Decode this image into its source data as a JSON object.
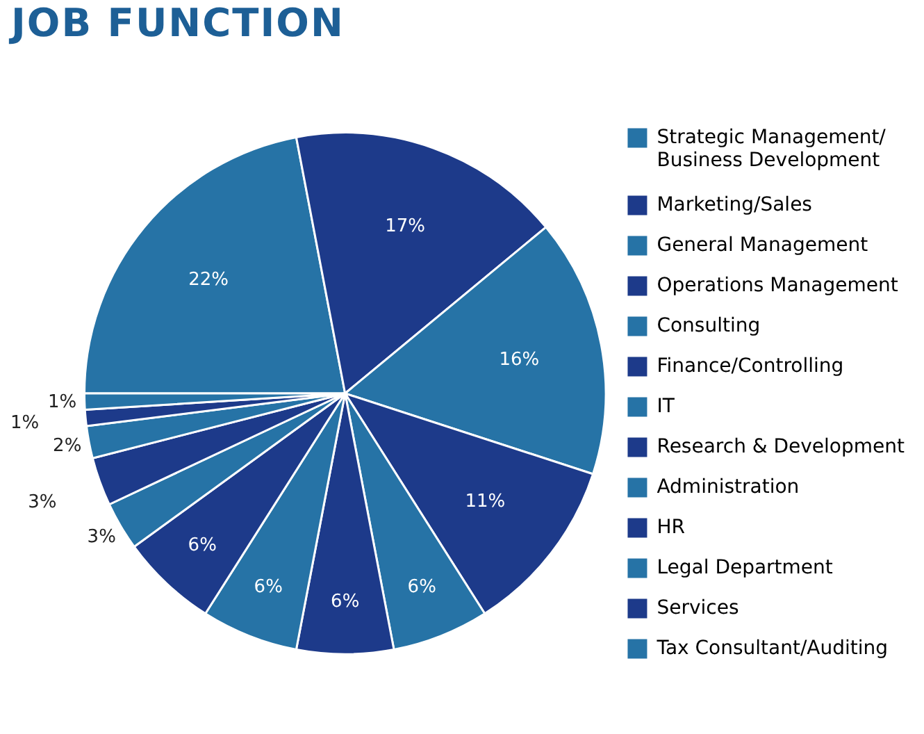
{
  "chart_data": {
    "type": "pie",
    "title": "JOB FUNCTION",
    "legend": "right",
    "categories": [
      "Strategic Management/\nBusiness Development",
      "Marketing/Sales",
      "General Management",
      "Operations Management",
      "Consulting",
      "Finance/Controlling",
      "IT",
      "Research & Development",
      "Administration",
      "HR",
      "Legal Department",
      "Services",
      "Tax Consultant/Auditing"
    ],
    "values": [
      22,
      17,
      16,
      11,
      6,
      6,
      6,
      6,
      3,
      3,
      2,
      1,
      1
    ],
    "value_labels": [
      "22%",
      "17%",
      "16%",
      "11%",
      "6%",
      "6%",
      "6%",
      "6%",
      "3%",
      "3%",
      "2%",
      "1%",
      "1%"
    ],
    "colors": [
      "#2673a6",
      "#1d3a8a",
      "#2673a6",
      "#1d3a8a",
      "#2673a6",
      "#1d3a8a",
      "#2673a6",
      "#1d3a8a",
      "#2673a6",
      "#1d3a8a",
      "#2673a6",
      "#1d3a8a",
      "#2673a6"
    ]
  }
}
